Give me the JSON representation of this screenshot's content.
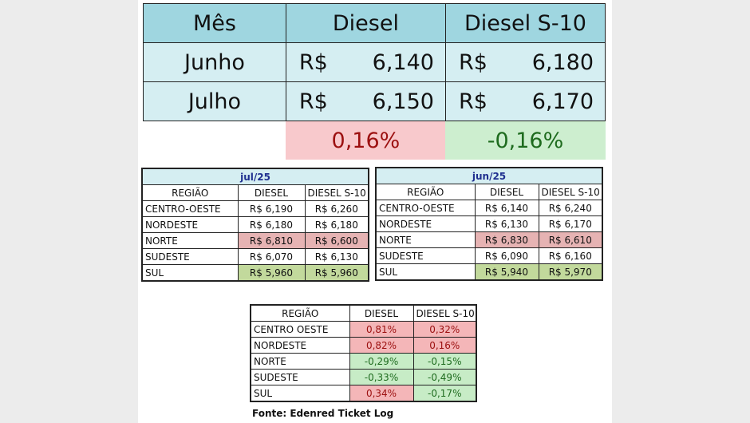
{
  "summary": {
    "headers": [
      "Mês",
      "Diesel",
      "Diesel S-10"
    ],
    "currency": "R$",
    "rows": [
      {
        "month": "Junho",
        "diesel": "6,140",
        "s10": "6,180"
      },
      {
        "month": "Julho",
        "diesel": "6,150",
        "s10": "6,170"
      }
    ],
    "variation": {
      "diesel": "0,16%",
      "s10": "-0,16%"
    }
  },
  "jul_table": {
    "title": "jul/25",
    "headers": [
      "REGIÃO",
      "DIESEL",
      "DIESEL S-10"
    ],
    "rows": [
      [
        "CENTRO-OESTE",
        "R$ 6,190",
        "R$ 6,260"
      ],
      [
        "NORDESTE",
        "R$ 6,180",
        "R$ 6,180"
      ],
      [
        "NORTE",
        "R$ 6,810",
        "R$ 6,600"
      ],
      [
        "SUDESTE",
        "R$ 6,070",
        "R$ 6,130"
      ],
      [
        "SUL",
        "R$ 5,960",
        "R$ 5,960"
      ]
    ]
  },
  "jun_table": {
    "title": "jun/25",
    "headers": [
      "REGIÃO",
      "DIESEL",
      "DIESEL S-10"
    ],
    "rows": [
      [
        "CENTRO-OESTE",
        "R$ 6,140",
        "R$ 6,240"
      ],
      [
        "NORDESTE",
        "R$ 6,130",
        "R$ 6,170"
      ],
      [
        "NORTE",
        "R$ 6,830",
        "R$ 6,610"
      ],
      [
        "SUDESTE",
        "R$ 6,090",
        "R$ 6,160"
      ],
      [
        "SUL",
        "R$ 5,940",
        "R$ 5,970"
      ]
    ]
  },
  "var_table": {
    "headers": [
      "REGIÃO",
      "DIESEL",
      "DIESEL S-10"
    ],
    "rows": [
      [
        "CENTRO OESTE",
        "0,81%",
        "0,32%"
      ],
      [
        "NORDESTE",
        "0,82%",
        "0,16%"
      ],
      [
        "NORTE",
        "-0,29%",
        "-0,15%"
      ],
      [
        "SUDESTE",
        "-0,33%",
        "-0,49%"
      ],
      [
        "SUL",
        "0,34%",
        "-0,17%"
      ]
    ]
  },
  "source": "Fonte: Edenred Ticket Log",
  "colors": {
    "header_blue": "#9fd6e0",
    "row_blue": "#d5eef2",
    "highlight_red": "#e6b3b3",
    "highlight_green": "#c2d99c",
    "up_red": "#f4b6b8",
    "down_green": "#c7ecc6"
  }
}
